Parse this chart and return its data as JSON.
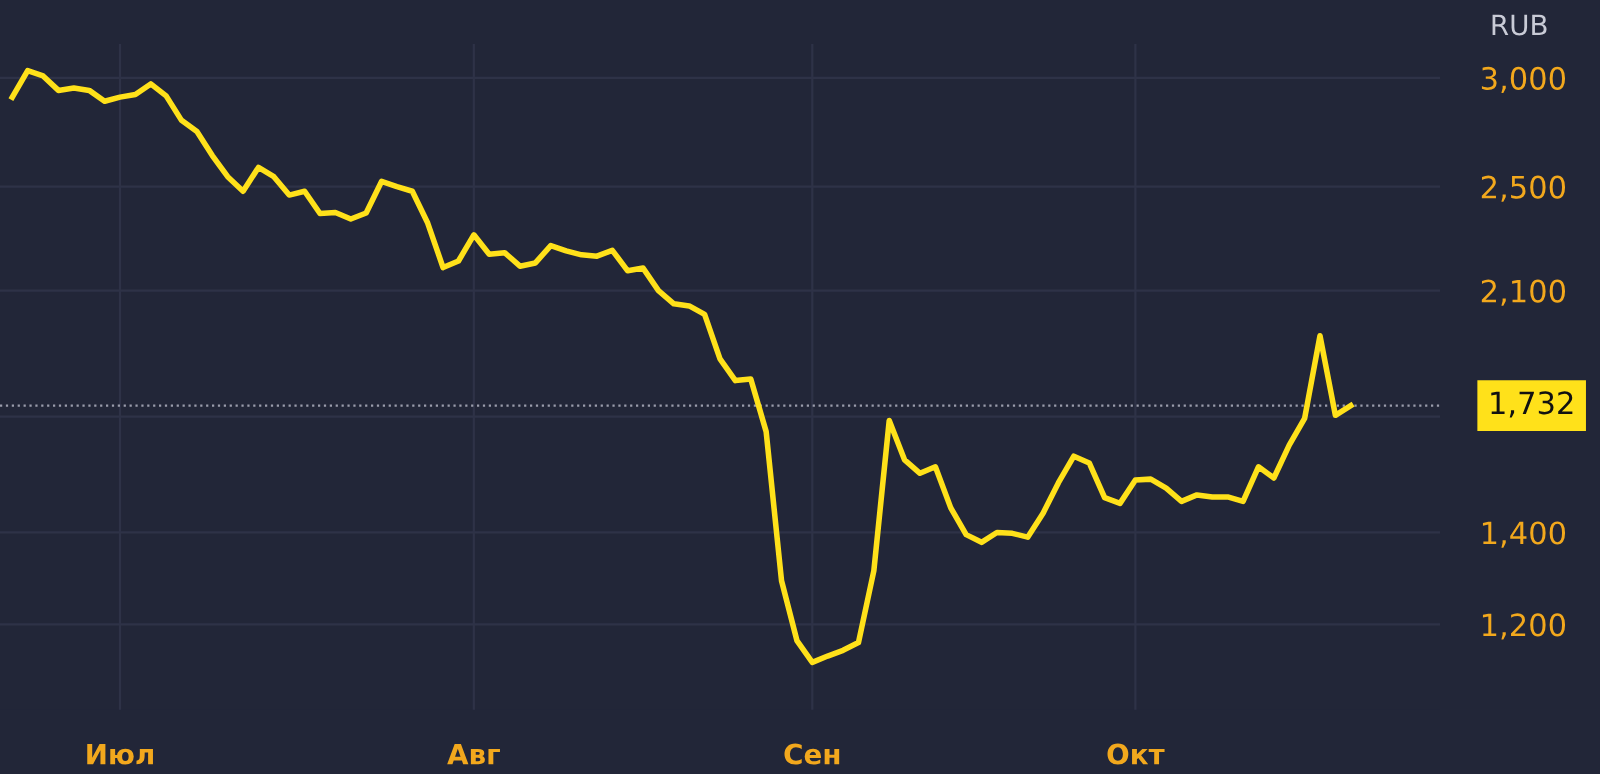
{
  "chart_data": {
    "type": "line",
    "ylabel": "RUB",
    "log": true,
    "grid": true,
    "marker": "none",
    "line_style": "solid",
    "categories": [
      null,
      null,
      null,
      null,
      null,
      null,
      null,
      "Июл",
      null,
      null,
      null,
      null,
      null,
      null,
      null,
      null,
      null,
      null,
      null,
      null,
      null,
      null,
      null,
      null,
      null,
      null,
      null,
      null,
      null,
      null,
      "Авг",
      null,
      null,
      null,
      null,
      null,
      null,
      null,
      null,
      null,
      null,
      null,
      null,
      null,
      null,
      null,
      null,
      null,
      null,
      null,
      null,
      null,
      "Сен",
      null,
      null,
      null,
      null,
      null,
      null,
      null,
      null,
      null,
      null,
      null,
      null,
      null,
      null,
      null,
      null,
      null,
      null,
      null,
      null,
      "Окт",
      null,
      null,
      null,
      null,
      null,
      null,
      null,
      null,
      null,
      null,
      null,
      null,
      null,
      null
    ],
    "ylim": [
      1040,
      3175
    ],
    "yticks": [
      {
        "value": 1200,
        "label": "1,200"
      },
      {
        "value": 1400,
        "label": "1,400"
      },
      {
        "value": 1700,
        "label": null
      },
      {
        "value": 2100,
        "label": "2,100"
      },
      {
        "value": 2500,
        "label": "2,500"
      },
      {
        "value": 3000,
        "label": "3,000"
      }
    ],
    "ref_lines": [
      {
        "axis": "y",
        "value": 1732,
        "label": "1,732",
        "color": "#9a9cab",
        "line_style": "dotted"
      }
    ],
    "series": [
      {
        "color": "#ffe11a",
        "values": [
          2905,
          3037,
          3010,
          2938,
          2950,
          2938,
          2885,
          2905,
          2918,
          2970,
          2911,
          2794,
          2742,
          2634,
          2542,
          2481,
          2582,
          2542,
          2465,
          2481,
          2390,
          2394,
          2368,
          2392,
          2522,
          2500,
          2481,
          2352,
          2183,
          2207,
          2306,
          2232,
          2238,
          2188,
          2200,
          2265,
          2245,
          2230,
          2225,
          2247,
          2171,
          2181,
          2100,
          2054,
          2047,
          2018,
          1873,
          1806,
          1811,
          1658,
          1291,
          1168,
          1126,
          1138,
          1149,
          1164,
          1313,
          1689,
          1581,
          1546,
          1563,
          1459,
          1395,
          1377,
          1400,
          1398,
          1389,
          1446,
          1522,
          1591,
          1573,
          1484,
          1470,
          1529,
          1531,
          1508,
          1475,
          1491,
          1486,
          1486,
          1475,
          1563,
          1534,
          1621,
          1695,
          1947,
          1704,
          1732
        ]
      }
    ]
  }
}
